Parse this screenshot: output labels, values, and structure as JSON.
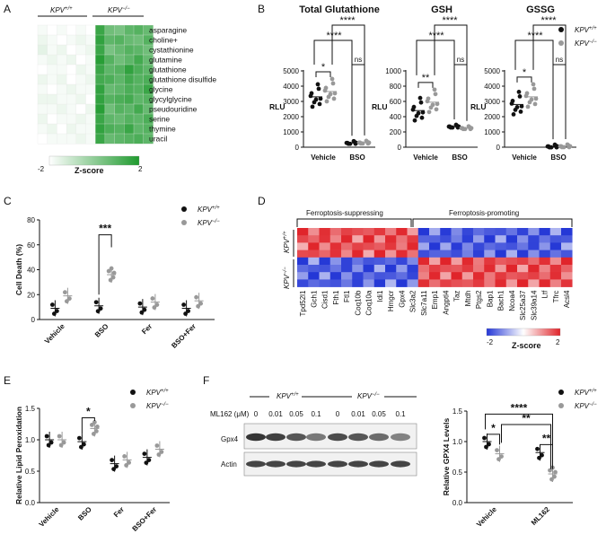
{
  "panels": {
    "a": {
      "letter": "A",
      "group1": "KPV",
      "group1_sup": "+/+",
      "group2": "KPV",
      "group2_sup": "−/−",
      "rows": [
        "asparagine",
        "choline+",
        "cystathionine",
        "glutamine",
        "glutathione",
        "glutathione disulfide",
        "glycine",
        "glycylglycine",
        "pseudouridine",
        "serine",
        "thymine",
        "uracil"
      ],
      "scale_min": "-2",
      "scale_max": "2",
      "scale_label": "Z-score",
      "colors": {
        "low": "#ffffff",
        "high": "#1f9a2e"
      },
      "heat_values": [
        [
          -0.9,
          -1,
          -0.9,
          -1,
          -0.9,
          -1,
          1.2,
          0.6,
          0.5,
          0.8,
          0.9,
          0.7
        ],
        [
          -0.8,
          -0.9,
          -1,
          -0.9,
          -0.8,
          -0.9,
          1.3,
          0.8,
          0.9,
          0.7,
          0.6,
          0.9
        ],
        [
          -0.7,
          -0.9,
          -0.8,
          -1,
          -0.9,
          -0.8,
          1.2,
          0.5,
          0.7,
          0.9,
          0.8,
          0.6
        ],
        [
          -0.9,
          -0.8,
          -0.9,
          -0.8,
          -1,
          -0.9,
          1.4,
          0.9,
          0.6,
          0.8,
          1.1,
          0.7
        ],
        [
          -1,
          -0.9,
          -0.9,
          -1,
          -0.8,
          -0.9,
          1.2,
          0.8,
          0.9,
          1.3,
          1.0,
          0.8
        ],
        [
          -0.8,
          -0.9,
          -0.8,
          -1,
          -0.9,
          -0.8,
          1.1,
          1.0,
          0.8,
          1.1,
          0.9,
          1.0
        ],
        [
          -0.9,
          -1,
          -0.9,
          -0.8,
          -0.9,
          -0.9,
          1.3,
          0.7,
          0.8,
          1.0,
          0.9,
          1.2
        ],
        [
          -0.8,
          -0.8,
          -0.9,
          -0.9,
          -0.8,
          -1,
          1.3,
          0.9,
          1.0,
          1.1,
          0.8,
          0.9
        ],
        [
          -0.9,
          -0.9,
          -0.8,
          -0.9,
          -1,
          -0.8,
          1.4,
          0.6,
          0.9,
          0.8,
          1.1,
          0.7
        ],
        [
          -0.8,
          -1,
          -0.9,
          -0.9,
          -0.8,
          -0.9,
          1.2,
          0.8,
          0.7,
          0.9,
          0.8,
          1.0
        ],
        [
          -0.9,
          -0.8,
          -1,
          -0.8,
          -0.9,
          -0.9,
          1.3,
          1.0,
          0.9,
          1.2,
          0.8,
          0.9
        ],
        [
          -1,
          -0.9,
          -0.9,
          -0.9,
          -0.8,
          -0.9,
          1.2,
          0.7,
          0.8,
          0.9,
          1.0,
          0.8
        ]
      ]
    },
    "b": {
      "letter": "B",
      "legend": [
        {
          "name": "KPV",
          "sup": "+/+",
          "color": "#111111"
        },
        {
          "name": "KPV",
          "sup": "−/−",
          "color": "#999999"
        }
      ],
      "ylabel": "RLU",
      "x_categories": [
        "Vehicle",
        "BSO"
      ],
      "subplots": [
        {
          "title": "Total Glutathione",
          "yticks": [
            "0",
            "1000",
            "2000",
            "3000",
            "4000",
            "5000"
          ],
          "ymax": 5000,
          "values": {
            "veh_wt": 3300,
            "veh_ko": 3650,
            "bso_wt": 280,
            "bso_ko": 300
          },
          "sig": [
            {
              "label": "*"
            },
            {
              "label": "****"
            },
            {
              "label": "****"
            },
            {
              "label": "ns"
            }
          ]
        },
        {
          "title": "GSH",
          "yticks": [
            "0",
            "200",
            "400",
            "600",
            "800",
            "1000"
          ],
          "ymax": 1000,
          "values": {
            "veh_wt": 480,
            "veh_ko": 590,
            "bso_wt": 270,
            "bso_ko": 250
          },
          "sig": [
            {
              "label": "**"
            },
            {
              "label": "****"
            },
            {
              "label": "****"
            },
            {
              "label": "ns"
            }
          ]
        },
        {
          "title": "GSSG",
          "yticks": [
            "0",
            "1000",
            "2000",
            "3000",
            "4000",
            "5000"
          ],
          "ymax": 5000,
          "values": {
            "veh_wt": 2800,
            "veh_ko": 3300,
            "bso_wt": 50,
            "bso_ko": 60
          },
          "sig": [
            {
              "label": "*"
            },
            {
              "label": "****"
            },
            {
              "label": "****"
            },
            {
              "label": "ns"
            }
          ]
        }
      ]
    },
    "c": {
      "letter": "C",
      "ylabel": "Cell Death (%)",
      "yticks": [
        "0",
        "20",
        "40",
        "60",
        "80"
      ],
      "x_categories": [
        "Vehicle",
        "BSO",
        "Fer",
        "BSO+Fer"
      ],
      "legend": [
        {
          "name": "KPV",
          "sup": "+/+"
        },
        {
          "name": "KPV",
          "sup": "−/−"
        }
      ],
      "sig": "***",
      "chart_data": {
        "type": "scatter",
        "categories": [
          "Vehicle",
          "BSO",
          "Fer",
          "BSO+Fer"
        ],
        "series": [
          {
            "name": "KPV+/+",
            "values": [
              9,
              11,
              10,
              9
            ]
          },
          {
            "name": "KPV−/−",
            "values": [
              19,
              36,
              14,
              15
            ]
          }
        ],
        "ylabel": "Cell Death (%)",
        "ylim": [
          0,
          80
        ]
      }
    },
    "d": {
      "letter": "D",
      "group_left": "Ferroptosis-suppressing",
      "group_right": "Ferroptosis-promoting",
      "row1": "KPV",
      "row1_sup": "+/+",
      "row2": "KPV",
      "row2_sup": "−/−",
      "genes": [
        "Tpd52l1",
        "Gch1",
        "Cisd1",
        "Fth1",
        "Ftl1",
        "Coq10b",
        "Coq10a",
        "Idi1",
        "Hmgcr",
        "Gpx4",
        "Slc3a2",
        "Slc7a11",
        "Emp1",
        "Angptl4",
        "Taz",
        "Mtdh",
        "Ptgs2",
        "Bap1",
        "Bach1",
        "Ncoa4",
        "Slc25a37",
        "Slc39a14",
        "Ltf",
        "Tfrc",
        "Acsl4"
      ],
      "scale_min": "-2",
      "scale_max": "2",
      "scale_label": "Z-score",
      "colors": {
        "low": "#2437d6",
        "mid": "#ffffff",
        "high": "#e0242a"
      }
    },
    "e": {
      "letter": "E",
      "ylabel": "Relative Lipid Peroxidation",
      "yticks": [
        "0.0",
        "0.5",
        "1.0",
        "1.5"
      ],
      "x_categories": [
        "Vehicle",
        "BSO",
        "Fer",
        "BSO+Fer"
      ],
      "legend": [
        {
          "name": "KPV",
          "sup": "+/+"
        },
        {
          "name": "KPV",
          "sup": "−/−"
        }
      ],
      "sig": "*",
      "chart_data": {
        "type": "scatter",
        "categories": [
          "Vehicle",
          "BSO",
          "Fer",
          "BSO+Fer"
        ],
        "series": [
          {
            "name": "KPV+/+",
            "values": [
              1.0,
              0.97,
              0.62,
              0.72
            ]
          },
          {
            "name": "KPV−/−",
            "values": [
              1.0,
              1.18,
              0.68,
              0.85
            ]
          }
        ],
        "ylabel": "Relative Lipid Peroxidation",
        "ylim": [
          0,
          1.5
        ]
      }
    },
    "f": {
      "letter": "F",
      "blot_group1": "KPV",
      "blot_group1_sup": "+/+",
      "blot_group2": "KPV",
      "blot_group2_sup": "−/−",
      "treatment_label": "ML162 (μM)",
      "lane_labels": [
        "0",
        "0.01",
        "0.05",
        "0.1",
        "0",
        "0.01",
        "0.05",
        "0.1"
      ],
      "band_labels": [
        "Gpx4",
        "Actin"
      ],
      "ylabel": "Relative GPX4 Levels",
      "yticks": [
        "0.0",
        "0.5",
        "1.0",
        "1.5"
      ],
      "x_categories": [
        "Vehicle",
        "ML162"
      ],
      "legend": [
        {
          "name": "KPV",
          "sup": "+/+"
        },
        {
          "name": "KPV",
          "sup": "−/−"
        }
      ],
      "sig": [
        {
          "label": "*"
        },
        {
          "label": "****"
        },
        {
          "label": "**"
        },
        {
          "label": "**"
        }
      ],
      "chart_data": {
        "type": "scatter",
        "categories": [
          "Vehicle",
          "ML162"
        ],
        "series": [
          {
            "name": "KPV+/+",
            "values": [
              1.0,
              0.82
            ]
          },
          {
            "name": "KPV−/−",
            "values": [
              0.8,
              0.47
            ]
          }
        ],
        "ylabel": "Relative GPX4 Levels",
        "ylim": [
          0,
          1.5
        ]
      }
    }
  }
}
